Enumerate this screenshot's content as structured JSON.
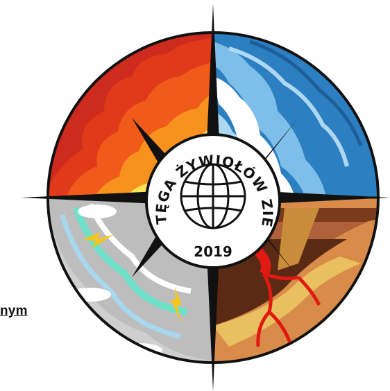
{
  "seal": {
    "arc_text": "POTĘGA ŻYWIOŁÓW ZIEMI",
    "year": "2019"
  },
  "side_text": "nym",
  "colors": {
    "fire_outer": "#cc2b1d",
    "fire_mid": "#f05a1a",
    "fire_inner": "#ffe45a",
    "water_outer": "#2c7fc0",
    "water_light": "#aed8f2",
    "air_grey": "#c8c8c8",
    "air_teal": "#6ee0c8",
    "earth_brown": "#7a3b1c",
    "earth_tan": "#d98c4a",
    "lava": "#e01a12",
    "compass": "#111111"
  },
  "icons": [
    "compass-rose-icon",
    "globe-icon"
  ]
}
